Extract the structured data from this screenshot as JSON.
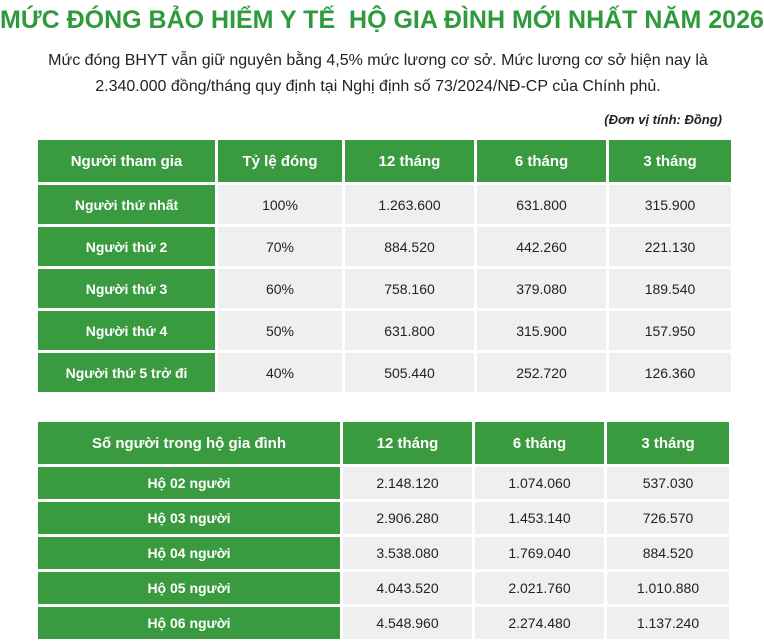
{
  "header": {
    "title": "MỨC ĐÓNG BẢO HIỂM Y TẾ  HỘ GIA ĐÌNH MỚI NHẤT NĂM 2026",
    "subtitle": [
      "Mức đóng BHYT vẫn giữ nguyên bằng 4,5% mức lương cơ sở. Mức lương cơ sở hiện nay là",
      "2.340.000 đồng/tháng quy định tại Nghị định số 73/2024/NĐ-CP của Chính phủ."
    ],
    "unit_note": "(Đơn vị tính: Đồng)"
  },
  "table1": {
    "columns": [
      "Người tham gia",
      "Tỷ lệ đóng",
      "12 tháng",
      "6 tháng",
      "3 tháng"
    ],
    "rows": [
      [
        "Người thứ nhất",
        "100%",
        "1.263.600",
        "631.800",
        "315.900"
      ],
      [
        "Người thứ 2",
        "70%",
        "884.520",
        "442.260",
        "221.130"
      ],
      [
        "Người thứ 3",
        "60%",
        "758.160",
        "379.080",
        "189.540"
      ],
      [
        "Người thứ 4",
        "50%",
        "631.800",
        "315.900",
        "157.950"
      ],
      [
        "Người thứ 5 trở đi",
        "40%",
        "505.440",
        "252.720",
        "126.360"
      ]
    ]
  },
  "table2": {
    "columns": [
      "Số người trong hộ gia đình",
      "12 tháng",
      "6 tháng",
      "3 tháng"
    ],
    "rows": [
      [
        "Hộ 02 người",
        "2.148.120",
        "1.074.060",
        "537.030"
      ],
      [
        "Hộ 03 người",
        "2.906.280",
        "1.453.140",
        "726.570"
      ],
      [
        "Hộ 04 người",
        "3.538.080",
        "1.769.040",
        "884.520"
      ],
      [
        "Hộ 05 người",
        "4.043.520",
        "2.021.760",
        "1.010.880"
      ],
      [
        "Hộ 06 người",
        "4.548.960",
        "2.274.480",
        "1.137.240"
      ]
    ]
  }
}
